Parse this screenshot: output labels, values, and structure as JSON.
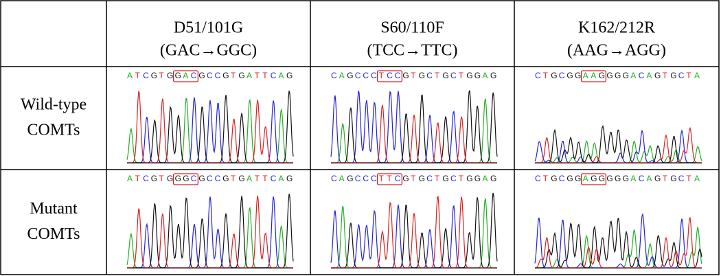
{
  "header": {
    "columns": [
      {
        "name": "D51/101G",
        "codon": "(GAC→GGC)"
      },
      {
        "name": "S60/110F",
        "codon": "(TCC→TTC)"
      },
      {
        "name": "K162/212R",
        "codon": "(AAG→AGG)"
      }
    ]
  },
  "rows": [
    {
      "label": [
        "Wild-type",
        "COMTs"
      ],
      "sequences": [
        "ATCGTGGACGCCGTGATTCAG",
        "CAGCCCTCCGTGCTGCTGGAG",
        "CTGCGGAAGGGGACAGTGCTA"
      ]
    },
    {
      "label": [
        "Mutant",
        "COMTs"
      ],
      "sequences": [
        "ATCGTGGGCGCCGTGATTCAG",
        "CAGCCCTTCGTGCTGCTGGAG",
        "CTGCGGAGGGGGACAGTGCTA"
      ]
    }
  ]
}
